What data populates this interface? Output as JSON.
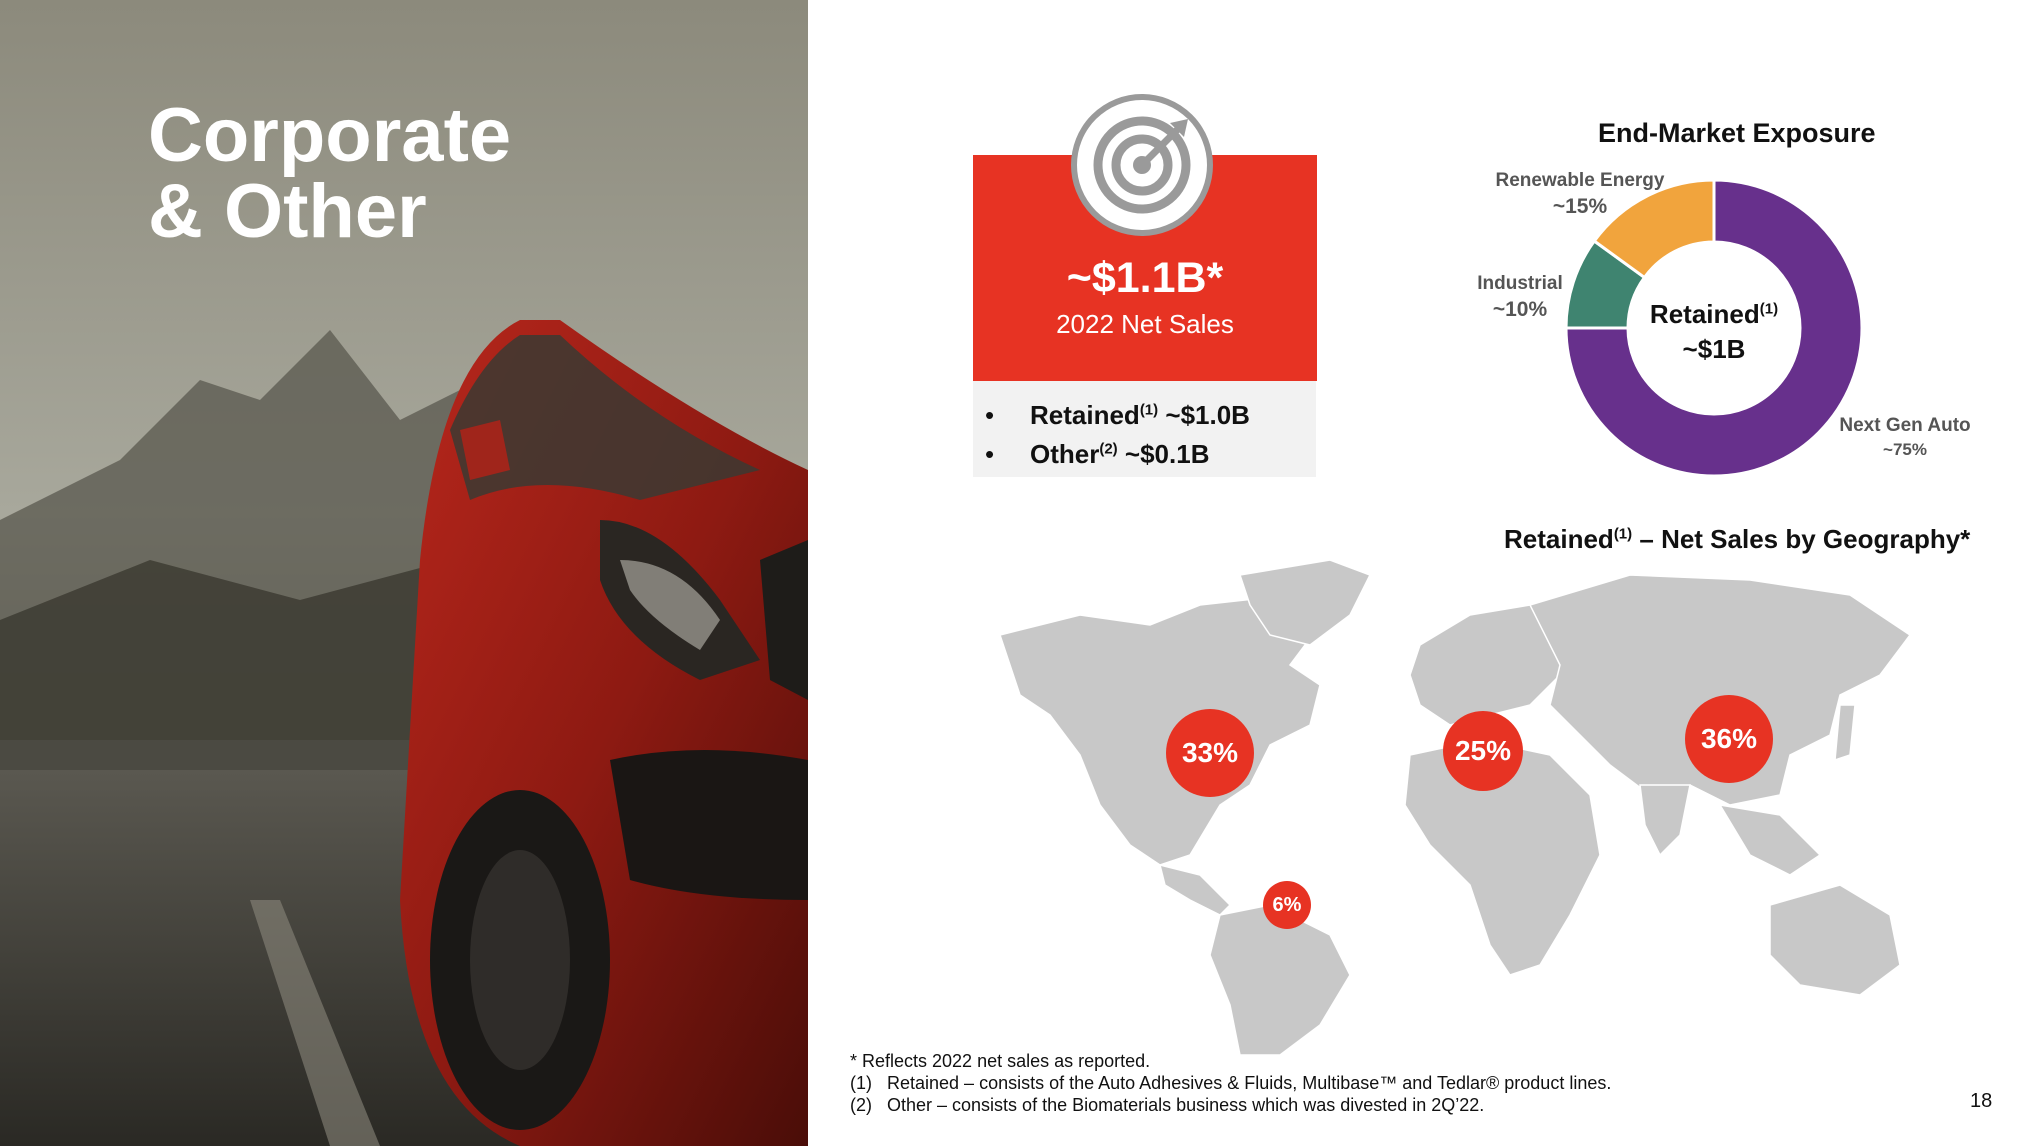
{
  "slide": {
    "title_line1": "Corporate",
    "title_line2": "& Other",
    "page_number": "18"
  },
  "net_sales": {
    "icon": "target-icon",
    "value": "~$1.1B*",
    "label": "2022 Net Sales",
    "breakdown": [
      {
        "bullet": "•",
        "name": "Retained",
        "sup": "(1)",
        "amount": " ~$1.0B"
      },
      {
        "bullet": "•",
        "name": "Other",
        "sup": "(2)",
        "amount": " ~$0.1B"
      }
    ]
  },
  "chart_data": [
    {
      "type": "pie",
      "title": "End-Market Exposure",
      "center_label_line1": "Retained",
      "center_label_sup": "(1)",
      "center_label_line2": "~$1B",
      "slices": [
        {
          "name": "Next Gen Auto",
          "label": "~75%",
          "value": 75,
          "color": "#67308c"
        },
        {
          "name": "Industrial",
          "label": "~10%",
          "value": 10,
          "color": "#3f8470"
        },
        {
          "name": "Renewable Energy",
          "label": "~15%",
          "value": 15,
          "color": "#f1a43d"
        }
      ]
    },
    {
      "type": "other",
      "title_prefix": "Retained",
      "title_sup": "(1)",
      "title_suffix": " – Net Sales by Geography*",
      "regions": [
        {
          "label": "33%",
          "value": 33
        },
        {
          "label": "6%",
          "value": 6
        },
        {
          "label": "25%",
          "value": 25
        },
        {
          "label": "36%",
          "value": 36
        }
      ],
      "bubble_color": "#e73323",
      "map_color": "#c8c8c8"
    }
  ],
  "footnotes": [
    "* Reflects 2022 net sales as reported.",
    "(1)   Retained – consists of the Auto Adhesives & Fluids, Multibase™ and Tedlar® product lines.",
    "(2)   Other – consists of the Biomaterials business which was divested in 2Q’22."
  ]
}
